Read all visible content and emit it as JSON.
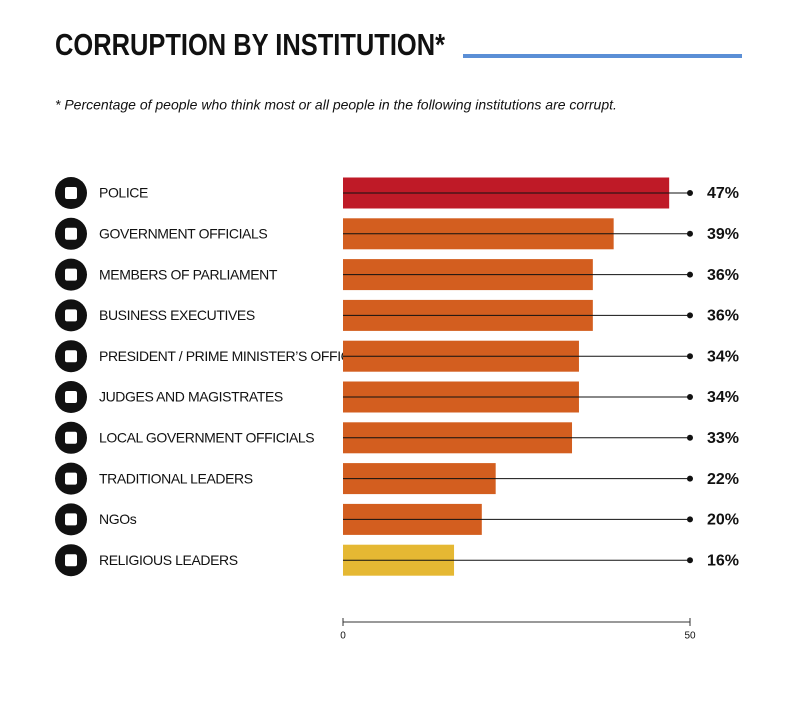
{
  "chart_data": {
    "type": "hbar",
    "title": "CORRUPTION BY INSTITUTION*",
    "subtitle": "* Percentage of people who think most or all people in the following institutions are corrupt.",
    "categories": [
      "POLICE",
      "GOVERNMENT OFFICIALS",
      "MEMBERS OF PARLIAMENT",
      "BUSINESS EXECUTIVES",
      "PRESIDENT / PRIME MINISTER’S OFFICE",
      "JUDGES AND MAGISTRATES",
      "LOCAL GOVERNMENT OFFICIALS",
      "TRADITIONAL LEADERS",
      "NGOs",
      "RELIGIOUS LEADERS"
    ],
    "values": [
      47,
      39,
      36,
      36,
      34,
      34,
      33,
      22,
      20,
      16
    ],
    "value_labels": [
      "47%",
      "39%",
      "36%",
      "36%",
      "34%",
      "34%",
      "33%",
      "22%",
      "20%",
      "16%"
    ],
    "colors": [
      "#bf1a27",
      "#d35e1f",
      "#d35e1f",
      "#d35e1f",
      "#d35e1f",
      "#d35e1f",
      "#d35e1f",
      "#d35e1f",
      "#d35e1f",
      "#e5b833"
    ],
    "xlim": [
      0,
      50
    ],
    "xticks": [
      0,
      50
    ]
  }
}
